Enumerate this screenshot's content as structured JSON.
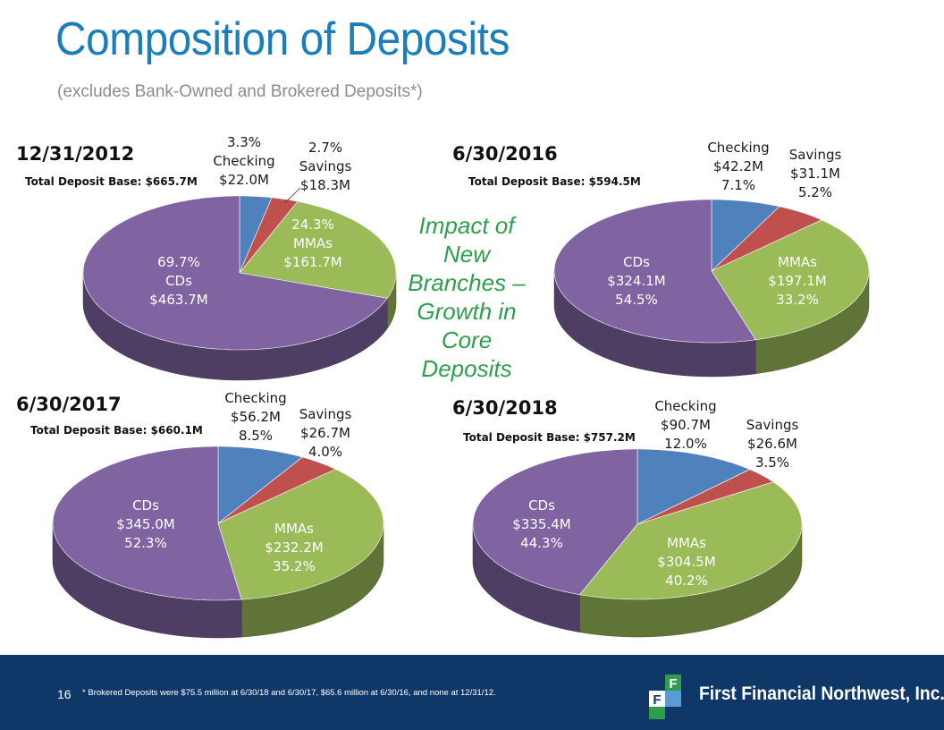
{
  "page": {
    "title": "Composition of Deposits",
    "subtitle": "(excludes Bank-Owned and Brokered Deposits*)",
    "impact_lines": [
      "Impact of",
      "New",
      "Branches –",
      "Growth in",
      "Core",
      "Deposits"
    ]
  },
  "colors": {
    "Checking": "#4f81bd",
    "Savings": "#c0504d",
    "MMAs": "#9bbb59",
    "CDs": "#8064a2",
    "title": "#1a7fb8",
    "impact": "#2e9e4c",
    "footer": "#0f3768"
  },
  "chart_data": [
    {
      "type": "pie",
      "date": "12/31/2012",
      "total_label": "Total Deposit Base: $665.7M",
      "slices": [
        {
          "name": "Checking",
          "value": 22.0,
          "percent": 3.3,
          "label_lines": [
            "3.3%",
            "Checking",
            "$22.0M"
          ]
        },
        {
          "name": "Savings",
          "value": 18.3,
          "percent": 2.7,
          "label_lines": [
            "2.7%",
            "Savings",
            "$18.3M"
          ]
        },
        {
          "name": "MMAs",
          "value": 161.7,
          "percent": 24.3,
          "label_lines": [
            "24.3%",
            "MMAs",
            "$161.7M"
          ]
        },
        {
          "name": "CDs",
          "value": 463.7,
          "percent": 69.7,
          "label_lines": [
            "69.7%",
            "CDs",
            "$463.7M"
          ]
        }
      ]
    },
    {
      "type": "pie",
      "date": "6/30/2016",
      "total_label": "Total Deposit Base: $594.5M",
      "slices": [
        {
          "name": "Checking",
          "value": 42.2,
          "percent": 7.1,
          "label_lines": [
            "Checking",
            "$42.2M",
            "7.1%"
          ]
        },
        {
          "name": "Savings",
          "value": 31.1,
          "percent": 5.2,
          "label_lines": [
            "Savings",
            "$31.1M",
            "5.2%"
          ]
        },
        {
          "name": "MMAs",
          "value": 197.1,
          "percent": 33.2,
          "label_lines": [
            "MMAs",
            "$197.1M",
            "33.2%"
          ]
        },
        {
          "name": "CDs",
          "value": 324.1,
          "percent": 54.5,
          "label_lines": [
            "CDs",
            "$324.1M",
            "54.5%"
          ]
        }
      ]
    },
    {
      "type": "pie",
      "date": "6/30/2017",
      "total_label": "Total Deposit Base: $660.1M",
      "slices": [
        {
          "name": "Checking",
          "value": 56.2,
          "percent": 8.5,
          "label_lines": [
            "Checking",
            "$56.2M",
            "8.5%"
          ]
        },
        {
          "name": "Savings",
          "value": 26.7,
          "percent": 4.0,
          "label_lines": [
            "Savings",
            "$26.7M",
            "4.0%"
          ]
        },
        {
          "name": "MMAs",
          "value": 232.2,
          "percent": 35.2,
          "label_lines": [
            "MMAs",
            "$232.2M",
            "35.2%"
          ]
        },
        {
          "name": "CDs",
          "value": 345.0,
          "percent": 52.3,
          "label_lines": [
            "CDs",
            "$345.0M",
            "52.3%"
          ]
        }
      ]
    },
    {
      "type": "pie",
      "date": "6/30/2018",
      "total_label": "Total Deposit Base: $757.2M",
      "slices": [
        {
          "name": "Checking",
          "value": 90.7,
          "percent": 12.0,
          "label_lines": [
            "Checking",
            "$90.7M",
            "12.0%"
          ]
        },
        {
          "name": "Savings",
          "value": 26.6,
          "percent": 3.5,
          "label_lines": [
            "Savings",
            "$26.6M",
            "3.5%"
          ]
        },
        {
          "name": "MMAs",
          "value": 304.5,
          "percent": 40.2,
          "label_lines": [
            "MMAs",
            "$304.5M",
            "40.2%"
          ]
        },
        {
          "name": "CDs",
          "value": 335.4,
          "percent": 44.3,
          "label_lines": [
            "CDs",
            "$335.4M",
            "44.3%"
          ]
        }
      ]
    }
  ],
  "footer": {
    "page_number": "16",
    "footnote": "* Brokered Deposits were $75.5 million at 6/30/18 and 6/30/17, $65.6 million at 6/30/16, and none at 12/31/12.",
    "logo_text": "First Financial Northwest, Inc.",
    "logo_mark": "FF"
  }
}
